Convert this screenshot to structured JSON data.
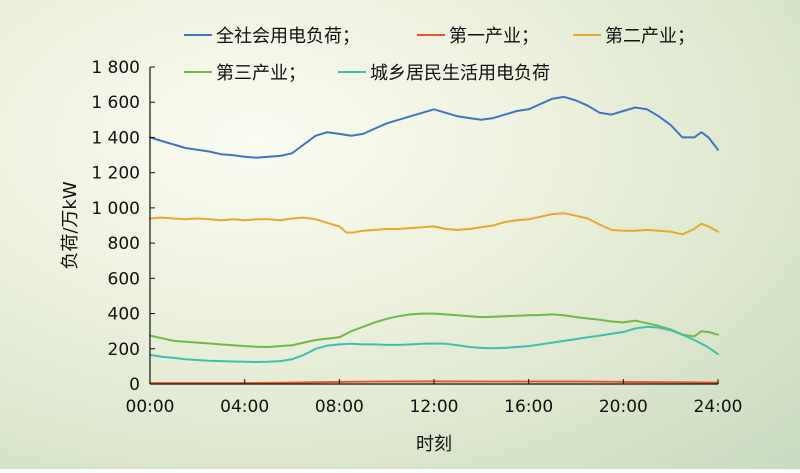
{
  "chart_data": {
    "type": "line",
    "xlabel": "时刻",
    "ylabel": "负荷/万kW",
    "ylim": [
      0,
      1800
    ],
    "xlim": [
      0,
      24
    ],
    "x_ticks": [
      {
        "value": 0,
        "label": "00:00"
      },
      {
        "value": 4,
        "label": "04:00"
      },
      {
        "value": 8,
        "label": "08:00"
      },
      {
        "value": 12,
        "label": "12:00"
      },
      {
        "value": 16,
        "label": "16:00"
      },
      {
        "value": 20,
        "label": "20:00"
      },
      {
        "value": 24,
        "label": "24:00"
      }
    ],
    "y_ticks": [
      {
        "value": 0,
        "label": "0"
      },
      {
        "value": 200,
        "label": "200"
      },
      {
        "value": 400,
        "label": "400"
      },
      {
        "value": 600,
        "label": "600"
      },
      {
        "value": 800,
        "label": "800"
      },
      {
        "value": 1000,
        "label": "1 000"
      },
      {
        "value": 1200,
        "label": "1 200"
      },
      {
        "value": 1400,
        "label": "1 400"
      },
      {
        "value": 1600,
        "label": "1 600"
      },
      {
        "value": 1800,
        "label": "1 800"
      }
    ],
    "grid": false,
    "legend_position": "top",
    "series": [
      {
        "name": "全社会用电负荷；",
        "color": "#4472c4",
        "points": [
          [
            0,
            1400
          ],
          [
            0.5,
            1380
          ],
          [
            1,
            1360
          ],
          [
            1.5,
            1340
          ],
          [
            2,
            1330
          ],
          [
            2.5,
            1320
          ],
          [
            3,
            1305
          ],
          [
            3.5,
            1300
          ],
          [
            4,
            1290
          ],
          [
            4.5,
            1285
          ],
          [
            5,
            1290
          ],
          [
            5.5,
            1295
          ],
          [
            6,
            1310
          ],
          [
            6.5,
            1360
          ],
          [
            7,
            1410
          ],
          [
            7.5,
            1430
          ],
          [
            8,
            1420
          ],
          [
            8.5,
            1410
          ],
          [
            9,
            1420
          ],
          [
            9.5,
            1450
          ],
          [
            10,
            1480
          ],
          [
            10.5,
            1500
          ],
          [
            11,
            1520
          ],
          [
            11.5,
            1540
          ],
          [
            12,
            1560
          ],
          [
            12.5,
            1540
          ],
          [
            13,
            1520
          ],
          [
            13.5,
            1510
          ],
          [
            14,
            1500
          ],
          [
            14.5,
            1510
          ],
          [
            15,
            1530
          ],
          [
            15.5,
            1550
          ],
          [
            16,
            1560
          ],
          [
            16.5,
            1590
          ],
          [
            17,
            1620
          ],
          [
            17.5,
            1630
          ],
          [
            18,
            1610
          ],
          [
            18.5,
            1580
          ],
          [
            19,
            1540
          ],
          [
            19.5,
            1530
          ],
          [
            20,
            1550
          ],
          [
            20.5,
            1570
          ],
          [
            21,
            1560
          ],
          [
            21.5,
            1520
          ],
          [
            22,
            1470
          ],
          [
            22.5,
            1400
          ],
          [
            23,
            1400
          ],
          [
            23.3,
            1430
          ],
          [
            23.6,
            1400
          ],
          [
            24,
            1330
          ]
        ]
      },
      {
        "name": "第一产业；",
        "color": "#e8582a",
        "points": [
          [
            0,
            5
          ],
          [
            2,
            5
          ],
          [
            4,
            5
          ],
          [
            6,
            8
          ],
          [
            8,
            12
          ],
          [
            10,
            14
          ],
          [
            12,
            15
          ],
          [
            14,
            14
          ],
          [
            16,
            14
          ],
          [
            18,
            14
          ],
          [
            20,
            12
          ],
          [
            22,
            10
          ],
          [
            24,
            8
          ]
        ]
      },
      {
        "name": "第二产业；",
        "color": "#e7a82e",
        "points": [
          [
            0,
            940
          ],
          [
            0.5,
            945
          ],
          [
            1,
            940
          ],
          [
            1.5,
            935
          ],
          [
            2,
            940
          ],
          [
            2.5,
            935
          ],
          [
            3,
            930
          ],
          [
            3.5,
            935
          ],
          [
            4,
            930
          ],
          [
            4.5,
            935
          ],
          [
            5,
            935
          ],
          [
            5.5,
            930
          ],
          [
            6,
            940
          ],
          [
            6.5,
            945
          ],
          [
            7,
            935
          ],
          [
            7.5,
            915
          ],
          [
            8,
            895
          ],
          [
            8.3,
            860
          ],
          [
            8.6,
            860
          ],
          [
            9,
            870
          ],
          [
            9.5,
            875
          ],
          [
            10,
            880
          ],
          [
            10.5,
            880
          ],
          [
            11,
            885
          ],
          [
            11.5,
            890
          ],
          [
            12,
            895
          ],
          [
            12.5,
            880
          ],
          [
            13,
            875
          ],
          [
            13.5,
            880
          ],
          [
            14,
            890
          ],
          [
            14.5,
            900
          ],
          [
            15,
            920
          ],
          [
            15.5,
            930
          ],
          [
            16,
            935
          ],
          [
            16.5,
            950
          ],
          [
            17,
            965
          ],
          [
            17.5,
            970
          ],
          [
            18,
            955
          ],
          [
            18.5,
            940
          ],
          [
            19,
            905
          ],
          [
            19.5,
            875
          ],
          [
            20,
            870
          ],
          [
            20.5,
            870
          ],
          [
            21,
            875
          ],
          [
            21.5,
            870
          ],
          [
            22,
            865
          ],
          [
            22.5,
            850
          ],
          [
            23,
            880
          ],
          [
            23.3,
            910
          ],
          [
            23.6,
            895
          ],
          [
            24,
            865
          ]
        ]
      },
      {
        "name": "第三产业；",
        "color": "#72b84c",
        "points": [
          [
            0,
            275
          ],
          [
            0.5,
            260
          ],
          [
            1,
            245
          ],
          [
            1.5,
            240
          ],
          [
            2,
            235
          ],
          [
            2.5,
            230
          ],
          [
            3,
            225
          ],
          [
            3.5,
            220
          ],
          [
            4,
            215
          ],
          [
            4.5,
            212
          ],
          [
            5,
            210
          ],
          [
            5.5,
            215
          ],
          [
            6,
            220
          ],
          [
            6.5,
            235
          ],
          [
            7,
            250
          ],
          [
            7.5,
            258
          ],
          [
            8,
            265
          ],
          [
            8.5,
            300
          ],
          [
            9,
            325
          ],
          [
            9.5,
            350
          ],
          [
            10,
            370
          ],
          [
            10.5,
            385
          ],
          [
            11,
            395
          ],
          [
            11.5,
            400
          ],
          [
            12,
            400
          ],
          [
            12.5,
            395
          ],
          [
            13,
            390
          ],
          [
            13.5,
            385
          ],
          [
            14,
            380
          ],
          [
            14.5,
            382
          ],
          [
            15,
            385
          ],
          [
            15.5,
            388
          ],
          [
            16,
            390
          ],
          [
            16.5,
            392
          ],
          [
            17,
            395
          ],
          [
            17.5,
            390
          ],
          [
            18,
            380
          ],
          [
            18.5,
            372
          ],
          [
            19,
            365
          ],
          [
            19.5,
            355
          ],
          [
            20,
            350
          ],
          [
            20.5,
            360
          ],
          [
            21,
            345
          ],
          [
            21.5,
            330
          ],
          [
            22,
            310
          ],
          [
            22.5,
            280
          ],
          [
            23,
            270
          ],
          [
            23.3,
            300
          ],
          [
            23.6,
            295
          ],
          [
            24,
            280
          ]
        ]
      },
      {
        "name": "城乡居民生活用电负荷",
        "color": "#3fbfb0",
        "points": [
          [
            0,
            165
          ],
          [
            0.5,
            155
          ],
          [
            1,
            148
          ],
          [
            1.5,
            140
          ],
          [
            2,
            136
          ],
          [
            2.5,
            132
          ],
          [
            3,
            130
          ],
          [
            3.5,
            128
          ],
          [
            4,
            126
          ],
          [
            4.5,
            125
          ],
          [
            5,
            126
          ],
          [
            5.5,
            130
          ],
          [
            6,
            140
          ],
          [
            6.5,
            165
          ],
          [
            7,
            200
          ],
          [
            7.5,
            218
          ],
          [
            8,
            225
          ],
          [
            8.5,
            228
          ],
          [
            9,
            225
          ],
          [
            9.5,
            225
          ],
          [
            10,
            222
          ],
          [
            10.5,
            222
          ],
          [
            11,
            225
          ],
          [
            11.5,
            228
          ],
          [
            12,
            230
          ],
          [
            12.5,
            228
          ],
          [
            13,
            220
          ],
          [
            13.5,
            210
          ],
          [
            14,
            205
          ],
          [
            14.5,
            203
          ],
          [
            15,
            205
          ],
          [
            15.5,
            210
          ],
          [
            16,
            215
          ],
          [
            16.5,
            225
          ],
          [
            17,
            235
          ],
          [
            17.5,
            245
          ],
          [
            18,
            255
          ],
          [
            18.5,
            265
          ],
          [
            19,
            275
          ],
          [
            19.5,
            285
          ],
          [
            20,
            295
          ],
          [
            20.5,
            315
          ],
          [
            21,
            325
          ],
          [
            21.5,
            320
          ],
          [
            22,
            305
          ],
          [
            22.5,
            280
          ],
          [
            23,
            250
          ],
          [
            23.5,
            215
          ],
          [
            24,
            170
          ]
        ]
      }
    ]
  }
}
